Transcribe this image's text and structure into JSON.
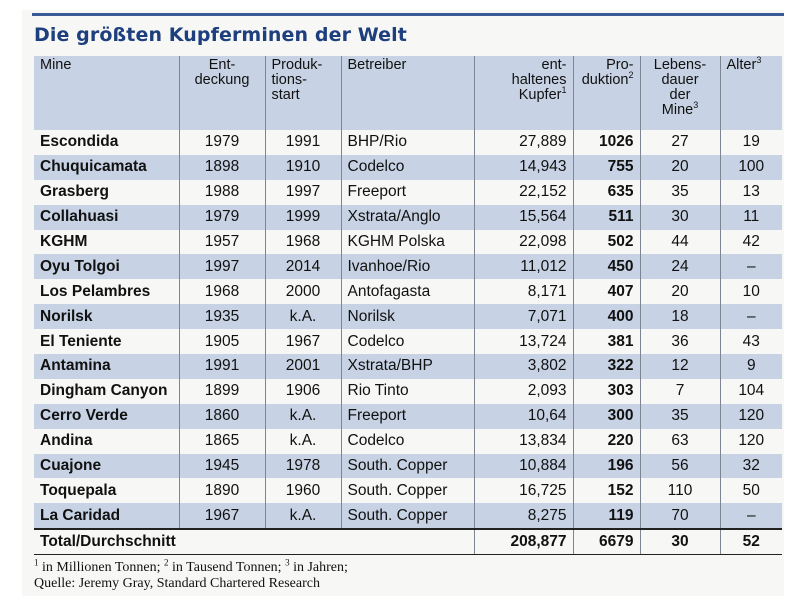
{
  "title": "Die größten Kupferminen der Welt",
  "headers": {
    "mine": "Mine",
    "discovery_1": "Ent-",
    "discovery_2": "deckung",
    "start_1": "Produk-",
    "start_2": "tions-",
    "start_3": "start",
    "operator": "Betreiber",
    "copper_1": "ent-",
    "copper_2": "haltenes",
    "copper_3": "Kupfer",
    "copper_sup": "1",
    "production_1": "Pro-",
    "production_2": "duktion",
    "production_sup": "2",
    "life_1": "Lebens-",
    "life_2": "dauer",
    "life_3": "der",
    "life_4": "Mine",
    "life_sup": "3",
    "age": "Alter",
    "age_sup": "3"
  },
  "rows": [
    {
      "mine": "Escondida",
      "discovery": "1979",
      "start": "1991",
      "operator": "BHP/Rio",
      "copper": "27,889",
      "production": "1026",
      "life": "27",
      "age": "19"
    },
    {
      "mine": "Chuquicamata",
      "discovery": "1898",
      "start": "1910",
      "operator": "Codelco",
      "copper": "14,943",
      "production": "755",
      "life": "20",
      "age": "100"
    },
    {
      "mine": "Grasberg",
      "discovery": "1988",
      "start": "1997",
      "operator": "Freeport",
      "copper": "22,152",
      "production": "635",
      "life": "35",
      "age": "13"
    },
    {
      "mine": "Collahuasi",
      "discovery": "1979",
      "start": "1999",
      "operator": "Xstrata/Anglo",
      "copper": "15,564",
      "production": "511",
      "life": "30",
      "age": "11"
    },
    {
      "mine": "KGHM",
      "discovery": "1957",
      "start": "1968",
      "operator": "KGHM Polska",
      "copper": "22,098",
      "production": "502",
      "life": "44",
      "age": "42"
    },
    {
      "mine": "Oyu Tolgoi",
      "discovery": "1997",
      "start": "2014",
      "operator": "Ivanhoe/Rio",
      "copper": "11,012",
      "production": "450",
      "life": "24",
      "age": "–"
    },
    {
      "mine": "Los Pelambres",
      "discovery": "1968",
      "start": "2000",
      "operator": "Antofagasta",
      "copper": "8,171",
      "production": "407",
      "life": "20",
      "age": "10"
    },
    {
      "mine": "Norilsk",
      "discovery": "1935",
      "start": "k.A.",
      "operator": "Norilsk",
      "copper": "7,071",
      "production": "400",
      "life": "18",
      "age": "–"
    },
    {
      "mine": "El Teniente",
      "discovery": "1905",
      "start": "1967",
      "operator": "Codelco",
      "copper": "13,724",
      "production": "381",
      "life": "36",
      "age": "43"
    },
    {
      "mine": "Antamina",
      "discovery": "1991",
      "start": "2001",
      "operator": "Xstrata/BHP",
      "copper": "3,802",
      "production": "322",
      "life": "12",
      "age": "9"
    },
    {
      "mine": "Dingham Canyon",
      "discovery": "1899",
      "start": "1906",
      "operator": "Rio Tinto",
      "copper": "2,093",
      "production": "303",
      "life": "7",
      "age": "104"
    },
    {
      "mine": "Cerro Verde",
      "discovery": "1860",
      "start": "k.A.",
      "operator": "Freeport",
      "copper": "10,64",
      "production": "300",
      "life": "35",
      "age": "120"
    },
    {
      "mine": "Andina",
      "discovery": "1865",
      "start": "k.A.",
      "operator": "Codelco",
      "copper": "13,834",
      "production": "220",
      "life": "63",
      "age": "120"
    },
    {
      "mine": "Cuajone",
      "discovery": "1945",
      "start": "1978",
      "operator": "South. Copper",
      "copper": "10,884",
      "production": "196",
      "life": "56",
      "age": "32"
    },
    {
      "mine": "Toquepala",
      "discovery": "1890",
      "start": "1960",
      "operator": "South. Copper",
      "copper": "16,725",
      "production": "152",
      "life": "110",
      "age": "50"
    },
    {
      "mine": "La Caridad",
      "discovery": "1967",
      "start": "k.A.",
      "operator": "South. Copper",
      "copper": "8,275",
      "production": "119",
      "life": "70",
      "age": "–"
    }
  ],
  "total": {
    "label": "Total/Durchschnitt",
    "copper": "208,877",
    "production": "6679",
    "life": "30",
    "age": "52"
  },
  "footnote": {
    "sup1": "1",
    "text1": " in Millionen Tonnen; ",
    "sup2": "2",
    "text2": " in Tausend Tonnen; ",
    "sup3": "3",
    "text3": " in Jahren;",
    "source": "Quelle: Jeremy Gray, Standard Chartered Research"
  }
}
